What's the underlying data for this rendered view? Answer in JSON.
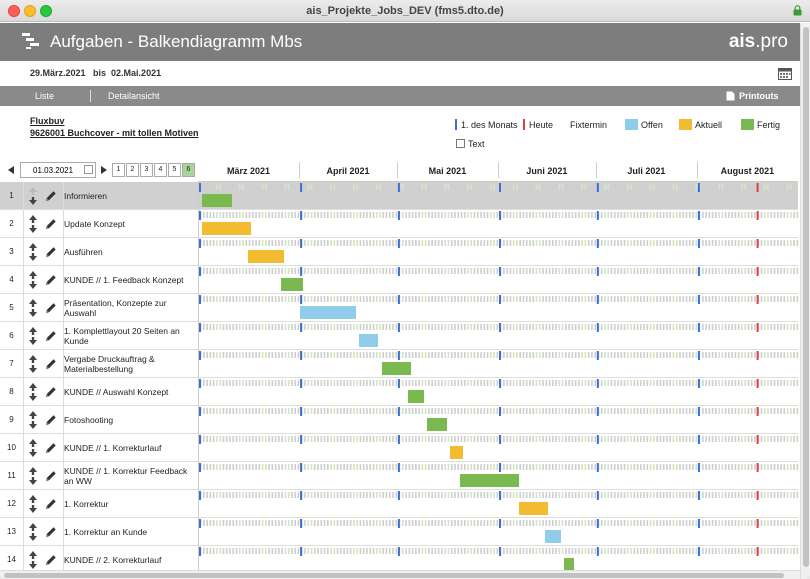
{
  "window": {
    "title": "ais_Projekte_Jobs_DEV (fms5.dto.de)"
  },
  "header": {
    "title": "Aufgaben - Balkendiagramm Mbs",
    "brand_bold": "ais",
    "brand_rest": ".pro"
  },
  "date_range": "29.März.2021   bis  02.Mai.2021",
  "nav": {
    "list": "Liste",
    "detail": "Detailansicht",
    "printouts": "Printouts"
  },
  "project": {
    "name": "Fluxbuv",
    "title": "9626001 Buchcover - mit tollen Motiven"
  },
  "legend": {
    "month_start": "1. des Monats",
    "today": "Heute",
    "fixed": "Fixtermin",
    "open": "Offen",
    "current": "Aktuell",
    "done": "Fertig",
    "text": "Text"
  },
  "colors": {
    "month_start": "#3a6fd8",
    "today": "#e04040",
    "open": "#8fcdea",
    "current": "#f3bb2f",
    "done": "#7ab850",
    "tick": "#cfcfcf",
    "tick_weekend": "#cfe8c4"
  },
  "controls": {
    "date": "01.03.2021",
    "pages": [
      "1",
      "2",
      "3",
      "4",
      "5",
      "6"
    ],
    "active_page": "6"
  },
  "months": [
    "März 2021",
    "April 2021",
    "Mai 2021",
    "Juni 2021",
    "Juli 2021",
    "August 2021"
  ],
  "timeline": {
    "start": "2021-03-01",
    "end": "2021-08-31",
    "today": "2021-08-19",
    "month_starts": [
      "2021-03-01",
      "2021-04-01",
      "2021-05-01",
      "2021-06-01",
      "2021-07-01",
      "2021-08-01"
    ]
  },
  "tasks": [
    {
      "num": "1",
      "label": "Informieren",
      "start": "2021-03-02",
      "end": "2021-03-10",
      "status": "done"
    },
    {
      "num": "2",
      "label": "Update Konzept",
      "start": "2021-03-02",
      "end": "2021-03-16",
      "status": "current"
    },
    {
      "num": "3",
      "label": "Ausführen",
      "start": "2021-03-16",
      "end": "2021-03-26",
      "status": "current"
    },
    {
      "num": "4",
      "label": "KUNDE // 1. Feedback Konzept",
      "start": "2021-03-26",
      "end": "2021-04-01",
      "status": "done"
    },
    {
      "num": "5",
      "label": "Präsentation, Konzepte zur Auswahl",
      "start": "2021-04-01",
      "end": "2021-04-17",
      "status": "open"
    },
    {
      "num": "6",
      "label": "1. Komplettlayout 20 Seiten an Kunde",
      "start": "2021-04-19",
      "end": "2021-04-24",
      "status": "open"
    },
    {
      "num": "7",
      "label": "Vergabe Druckauftrag & Materialbestellung",
      "start": "2021-04-26",
      "end": "2021-05-04",
      "status": "done"
    },
    {
      "num": "8",
      "label": "KUNDE //  Auswahl Konzept",
      "start": "2021-05-04",
      "end": "2021-05-08",
      "status": "done"
    },
    {
      "num": "9",
      "label": "Fotoshooting",
      "start": "2021-05-10",
      "end": "2021-05-15",
      "status": "done"
    },
    {
      "num": "10",
      "label": "KUNDE // 1. Korrekturlauf",
      "start": "2021-05-17",
      "end": "2021-05-20",
      "status": "current"
    },
    {
      "num": "11",
      "label": "KUNDE // 1. Korrektur Feedback an WW",
      "start": "2021-05-20",
      "end": "2021-06-06",
      "status": "done"
    },
    {
      "num": "12",
      "label": "1. Korrektur",
      "start": "2021-06-07",
      "end": "2021-06-15",
      "status": "current"
    },
    {
      "num": "13",
      "label": "1. Korrektur an Kunde",
      "start": "2021-06-15",
      "end": "2021-06-19",
      "status": "open"
    },
    {
      "num": "14",
      "label": "KUNDE // 2. Korrekturlauf",
      "start": "2021-06-21",
      "end": "2021-06-23",
      "status": "done"
    }
  ]
}
